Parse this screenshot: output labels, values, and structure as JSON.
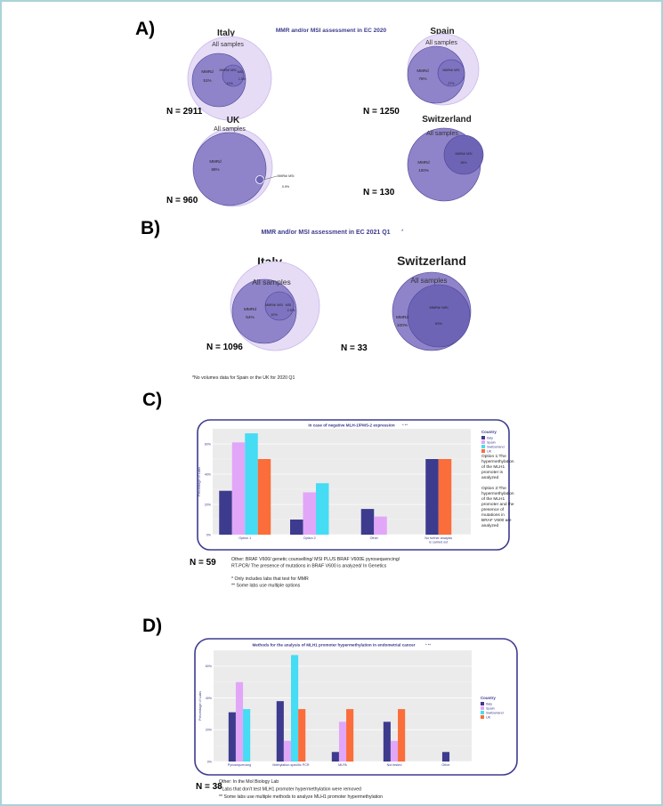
{
  "colors": {
    "outer_circle": "#e6dcf6",
    "outer_stroke": "#c9b9ea",
    "mid_circle": "#8f84c9",
    "inner_circle": "#6e64b6",
    "circle_stroke": "#4b4497",
    "title_blue": "#3b3a8c",
    "series_italy": "#3d3b8e",
    "series_spain": "#e2a6f8",
    "series_switzerland": "#45dcf4",
    "series_uk": "#fb6d3a",
    "panel_border": "#3c3c90",
    "plot_bg": "#ebebeb"
  },
  "labels": {
    "A": "A)",
    "B": "B)",
    "C": "C)",
    "D": "D)"
  },
  "panel_a": {
    "title": "MMR and/or MSI assessment in EC 2020",
    "italy": {
      "country": "Italy",
      "all": "All samples",
      "mmrd": "MMRd",
      "mmrd_pct": "51%",
      "mmrd_msi": "MMRd/ MSI",
      "mmrd_msi_pct": "12%",
      "msi": "MSI",
      "msi_pct": "1.5%",
      "n": "N = 2911"
    },
    "spain": {
      "country": "Spain",
      "all": "All samples",
      "mmrd": "MMRd",
      "mmrd_pct": "76%",
      "mmrd_msi": "MMRd/ MSI",
      "mmrd_msi_pct": "27%",
      "n": "N = 1250"
    },
    "uk": {
      "country": "UK",
      "all": "All samples",
      "mmrd": "MMRd",
      "mmrd_pct": "88%",
      "mmrd_msi": "MMRd/ MSI",
      "mmrd_msi_pct": "0.9%",
      "n": "N = 960"
    },
    "switzerland": {
      "country": "Switzerland",
      "all": "All samples",
      "mmrd": "MMRd",
      "mmrd_pct": "100%",
      "mmrd_msi": "MMRd/ MSI",
      "mmrd_msi_pct": "38%",
      "n": "N = 130"
    }
  },
  "panel_b": {
    "title": "MMR and/or MSI assessment in EC 2021 Q1",
    "title_marker": "*",
    "italy": {
      "country": "Italy",
      "all": "All samples",
      "mmrd": "MMRd",
      "mmrd_pct": "54%",
      "mmrd_msi": "MMRd/ MSI",
      "mmrd_msi_pct": "10%",
      "msi": "MSI",
      "msi_pct": "2.5%",
      "n": "N = 1096"
    },
    "switzerland": {
      "country": "Switzerland",
      "all": "All samples",
      "mmrd": "MMRd",
      "mmrd_pct": "100%",
      "mmrd_msi": "MMRd/ MSI",
      "mmrd_msi_pct": "63%",
      "n": "N = 33"
    },
    "footnote": "*No volumes data for Spain or the UK for 2020 Q1"
  },
  "panel_c": {
    "n": "N = 59",
    "notes": [
      "Other: BRAF V600/ genetic counselling/ MSI PLUS BRAF V600E pyrosequencing/",
      "RT-PCR/ The presence of mutations in BRAF V600 is analyzed/ In Genetics",
      "",
      "* Only includes labs that test for MMR",
      "** Some labs use multiple options"
    ],
    "option_notes": [
      [
        "Option 1:The",
        "hypermethylation",
        "of the MLH1",
        "promoter is",
        "analyzed"
      ],
      [
        "Option 2:The",
        "hypermethylation",
        "of the MLH1",
        "promoter and the",
        "presence of",
        "mutations in",
        "BRAF V600 are",
        "analyzed"
      ]
    ]
  },
  "panel_d": {
    "n": "N = 38",
    "notes": [
      "Other: In the Mol Biology Lab",
      "* Labs that don't test MLH1 promoter hypermethylation were removed",
      "** Some labs use multiple methods to analyze MLH1 promoter hypermethylation"
    ]
  },
  "chart_data": [
    {
      "id": "C",
      "type": "bar",
      "title": "In case of negative MLH-1/PMS-2 expression",
      "title_marks": "*    **",
      "ylabel": "Percentage of Labs",
      "xlabel": "",
      "ylim": [
        0,
        70
      ],
      "yticks": [
        0,
        20,
        40,
        60
      ],
      "ytick_labels": [
        "0%",
        "20%",
        "40%",
        "60%"
      ],
      "legend_title": "Country",
      "legend_position": "right",
      "categories": [
        "Option 1",
        "Option 2",
        "Other",
        "No further analysis is carried out"
      ],
      "category_lines": [
        [
          "Option 1"
        ],
        [
          "Option 2"
        ],
        [
          "Other"
        ],
        [
          "No further analysis",
          "is carried out"
        ]
      ],
      "series": [
        {
          "name": "Italy",
          "values": [
            29,
            10,
            17,
            50
          ]
        },
        {
          "name": "Spain",
          "values": [
            61,
            28,
            12,
            null
          ]
        },
        {
          "name": "Switzerland",
          "values": [
            67,
            34,
            null,
            null
          ]
        },
        {
          "name": "UK",
          "values": [
            50,
            null,
            null,
            50
          ]
        }
      ]
    },
    {
      "id": "D",
      "type": "bar",
      "title": "Methods for the analysis of MLH1 promoter hypermethylation in endometrial cancer",
      "title_marks": "*    **",
      "ylabel": "Percentage of Labs",
      "xlabel": "",
      "ylim": [
        0,
        70
      ],
      "yticks": [
        0,
        20,
        40,
        60
      ],
      "ytick_labels": [
        "0%",
        "20%",
        "40%",
        "60%"
      ],
      "legend_title": "Country",
      "legend_position": "right",
      "categories": [
        "Pyrosequencing",
        "Methylation-specific PCR",
        "MLPA",
        "Not tested",
        "Other"
      ],
      "category_lines": [
        [
          "Pyrosequencing"
        ],
        [
          "Methylation-specific PCR"
        ],
        [
          "MLPA"
        ],
        [
          "Not tested"
        ],
        [
          "Other"
        ]
      ],
      "series": [
        {
          "name": "Italy",
          "values": [
            31,
            38,
            6,
            25,
            6
          ]
        },
        {
          "name": "Spain",
          "values": [
            50,
            13,
            25,
            13,
            null
          ]
        },
        {
          "name": "Switzerland",
          "values": [
            33,
            67,
            null,
            null,
            null
          ]
        },
        {
          "name": "UK",
          "values": [
            null,
            33,
            33,
            33,
            null
          ]
        }
      ]
    }
  ]
}
